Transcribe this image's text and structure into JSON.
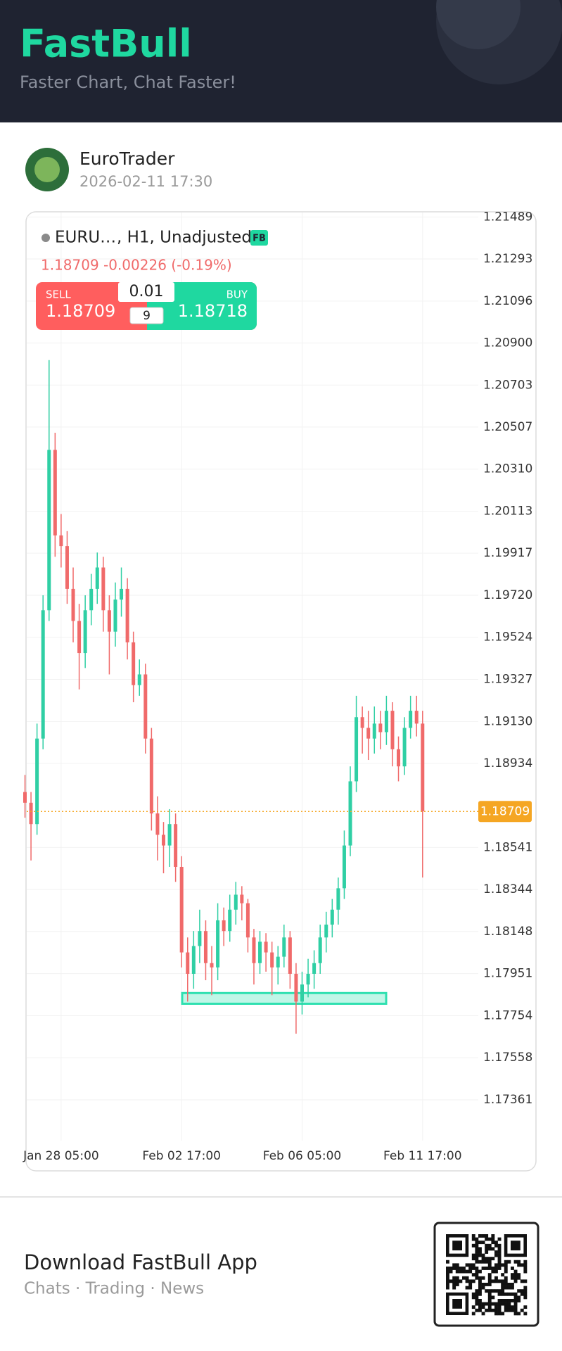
{
  "header": {
    "logo": "FastBull",
    "tagline": "Faster Chart, Chat Faster!"
  },
  "post": {
    "author": "EuroTrader",
    "time": "2026-02-11 17:30"
  },
  "chart_data": {
    "type": "candlestick",
    "symbol": "EURU…",
    "symbol_info": ", H1, Unadjusted",
    "badge": "FB",
    "quote": {
      "price": 1.18709,
      "change": "-0.00226 (-0.19%)"
    },
    "trade": {
      "sell_label": "SELL",
      "sell": 1.18709,
      "buy_label": "BUY",
      "buy": 1.18718,
      "lot": "0.01",
      "spread": "9"
    },
    "categories": [
      null,
      null,
      null,
      null,
      null,
      null,
      "Jan 28 05:00",
      null,
      null,
      null,
      null,
      null,
      null,
      null,
      null,
      null,
      null,
      null,
      null,
      null,
      null,
      null,
      null,
      null,
      null,
      null,
      "Feb 02 17:00",
      null,
      null,
      null,
      null,
      null,
      null,
      null,
      null,
      null,
      null,
      null,
      null,
      null,
      null,
      null,
      null,
      null,
      null,
      null,
      "Feb 06 05:00",
      null,
      null,
      null,
      null,
      null,
      null,
      null,
      null,
      null,
      null,
      null,
      null,
      null,
      null,
      null,
      null,
      null,
      null,
      null,
      "Feb 11 17:00"
    ],
    "open": [
      1.188,
      1.1875,
      1.1865,
      1.1905,
      1.1965,
      1.204,
      1.2,
      1.1995,
      1.1975,
      1.196,
      1.1945,
      1.1965,
      1.1975,
      1.1985,
      1.1965,
      1.1955,
      1.197,
      1.1975,
      1.195,
      1.193,
      1.1935,
      1.1905,
      1.187,
      1.186,
      1.1855,
      1.1865,
      1.1845,
      1.1805,
      1.1795,
      1.1808,
      1.1815,
      1.18,
      1.1798,
      1.182,
      1.1815,
      1.1825,
      1.1832,
      1.1828,
      1.1812,
      1.18,
      1.181,
      1.1805,
      1.1798,
      1.1803,
      1.1812,
      1.1795,
      1.1782,
      1.179,
      1.1795,
      1.18,
      1.1812,
      1.1818,
      1.1825,
      1.1835,
      1.1855,
      1.1885,
      1.1915,
      1.191,
      1.1905,
      1.1912,
      1.1908,
      1.1918,
      1.19,
      1.1892,
      1.191,
      1.1918,
      1.1912
    ],
    "high": [
      1.1888,
      1.188,
      1.1912,
      1.1972,
      1.2082,
      1.2048,
      1.201,
      1.2002,
      1.1985,
      1.1968,
      1.1972,
      1.1982,
      1.1992,
      1.199,
      1.1972,
      1.1978,
      1.1985,
      1.198,
      1.1955,
      1.1942,
      1.194,
      1.191,
      1.1878,
      1.1866,
      1.1872,
      1.187,
      1.185,
      1.1812,
      1.1815,
      1.1825,
      1.182,
      1.1808,
      1.1828,
      1.1826,
      1.1832,
      1.1838,
      1.1836,
      1.183,
      1.1816,
      1.1815,
      1.1814,
      1.181,
      1.1808,
      1.1818,
      1.1815,
      1.18,
      1.1796,
      1.1802,
      1.1806,
      1.1818,
      1.1824,
      1.183,
      1.184,
      1.1862,
      1.1892,
      1.1925,
      1.192,
      1.1918,
      1.192,
      1.1918,
      1.1925,
      1.1922,
      1.1906,
      1.1915,
      1.1925,
      1.1925,
      1.1918
    ],
    "low": [
      1.1868,
      1.1848,
      1.186,
      1.19,
      1.196,
      1.199,
      1.1985,
      1.1968,
      1.195,
      1.1928,
      1.1938,
      1.1958,
      1.1968,
      1.1955,
      1.1935,
      1.1948,
      1.1962,
      1.1942,
      1.1922,
      1.1925,
      1.1898,
      1.1862,
      1.1848,
      1.1842,
      1.1845,
      1.1838,
      1.1798,
      1.1782,
      1.1788,
      1.18,
      1.1792,
      1.1785,
      1.1792,
      1.1808,
      1.181,
      1.1818,
      1.182,
      1.1805,
      1.179,
      1.1795,
      1.1796,
      1.1785,
      1.179,
      1.1798,
      1.1788,
      1.1767,
      1.1776,
      1.1784,
      1.1788,
      1.1795,
      1.1805,
      1.1812,
      1.1818,
      1.183,
      1.185,
      1.188,
      1.1898,
      1.1895,
      1.1898,
      1.19,
      1.1902,
      1.1892,
      1.1885,
      1.1888,
      1.1905,
      1.1906,
      1.184
    ],
    "close": [
      1.1875,
      1.1865,
      1.1905,
      1.1965,
      1.204,
      1.2,
      1.1995,
      1.1975,
      1.196,
      1.1945,
      1.1965,
      1.1975,
      1.1985,
      1.1965,
      1.1955,
      1.197,
      1.1975,
      1.195,
      1.193,
      1.1935,
      1.1905,
      1.187,
      1.186,
      1.1855,
      1.1865,
      1.1845,
      1.1805,
      1.1795,
      1.1808,
      1.1815,
      1.18,
      1.1798,
      1.182,
      1.1815,
      1.1825,
      1.1832,
      1.1828,
      1.1812,
      1.18,
      1.181,
      1.1805,
      1.1798,
      1.1803,
      1.1812,
      1.1795,
      1.1782,
      1.179,
      1.1795,
      1.18,
      1.1812,
      1.1818,
      1.1825,
      1.1835,
      1.1855,
      1.1885,
      1.1915,
      1.191,
      1.1905,
      1.1912,
      1.1908,
      1.1918,
      1.19,
      1.1892,
      1.191,
      1.1918,
      1.1912,
      1.1871
    ],
    "up_color": "#2fcfa4",
    "down_color": "#f06a6a",
    "last_price": 1.18709,
    "last_price_color": "#f5a623",
    "zone": {
      "low": 1.1781,
      "high": 1.1786,
      "color": "#2fe0b0"
    },
    "ylim": [
      1.1717,
      1.2151
    ],
    "yticks": [
      1.21489,
      1.21293,
      1.21096,
      {
        "value": 1.209,
        "label": "1.20900"
      },
      1.20703,
      1.20507,
      {
        "value": 1.2031,
        "label": "1.20310"
      },
      1.20113,
      1.19917,
      {
        "value": 1.1972,
        "label": "1.19720"
      },
      1.19524,
      1.19327,
      {
        "value": 1.1913,
        "label": "1.19130"
      },
      1.18934,
      1.18541,
      1.18344,
      1.18148,
      1.17951,
      1.17754,
      1.17558,
      1.17361
    ],
    "grid": true
  },
  "footer": {
    "title": "Download FastBull App",
    "subtitle": "Chats · Trading · News"
  }
}
